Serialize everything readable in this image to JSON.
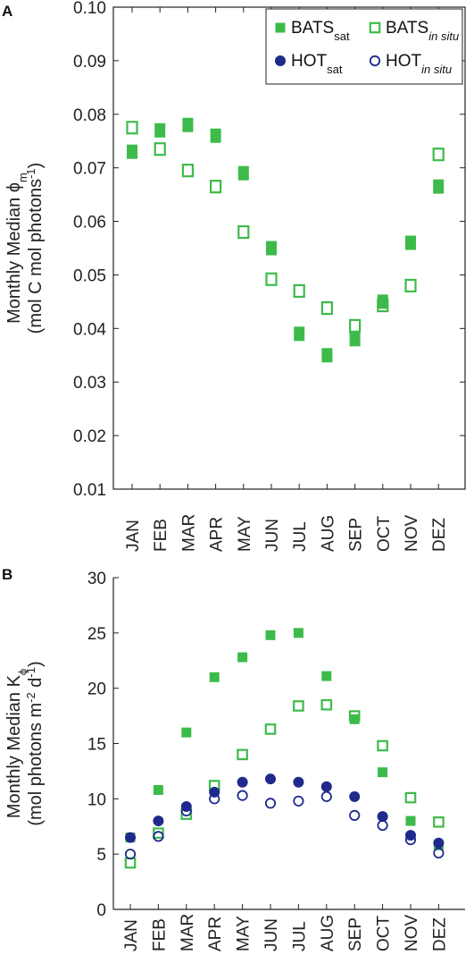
{
  "colors": {
    "bats": "#3dbb4a",
    "hot": "#1f2a8c",
    "axis": "#222222"
  },
  "chart_data": [
    {
      "panel": "A",
      "type": "scatter",
      "ylabel_line1": "Monthly Median ϕ",
      "ylabel_line1_sub": "m",
      "ylabel_line2_pre": "(mol C mol photons",
      "ylabel_line2_sup": "-1",
      "ylabel_line2_post": ")",
      "xlabel": "",
      "ylim": [
        0.01,
        0.1
      ],
      "yticks": [
        "0.10",
        "0.09",
        "0.08",
        "0.07",
        "0.06",
        "0.05",
        "0.04",
        "0.03",
        "0.02",
        "0.01"
      ],
      "ytick_values": [
        0.1,
        0.09,
        0.08,
        0.07,
        0.06,
        0.05,
        0.04,
        0.03,
        0.02,
        0.01
      ],
      "categories": [
        "JAN",
        "FEB",
        "MAR",
        "APR",
        "MAY",
        "JUN",
        "JUL",
        "AUG",
        "SEP",
        "OCT",
        "NOV",
        "DEZ"
      ],
      "legend": [
        {
          "base": "BATS",
          "sub": "sat",
          "sub_italic": false,
          "marker": "filled-square",
          "color": "bats"
        },
        {
          "base": "BATS",
          "sub": "in situ",
          "sub_italic": true,
          "marker": "open-square",
          "color": "bats"
        },
        {
          "base": "HOT",
          "sub": "sat",
          "sub_italic": false,
          "marker": "filled-circle",
          "color": "hot"
        },
        {
          "base": "HOT",
          "sub": "in situ",
          "sub_italic": true,
          "marker": "open-circle",
          "color": "hot"
        }
      ],
      "legend_position": "top-right",
      "series": [
        {
          "key": "bats_sat",
          "marker": "filled-rect",
          "color": "bats",
          "values": [
            0.073,
            0.077,
            0.078,
            0.076,
            0.069,
            0.055,
            0.039,
            0.035,
            0.038,
            0.045,
            0.056,
            0.0665
          ]
        },
        {
          "key": "bats_insitu",
          "marker": "open-rect",
          "color": "bats",
          "values": [
            0.0775,
            0.0735,
            0.0695,
            0.0665,
            0.058,
            0.0492,
            0.047,
            0.0438,
            0.0405,
            0.0443,
            0.048,
            0.0725
          ]
        }
      ]
    },
    {
      "panel": "B",
      "type": "scatter",
      "ylabel_line1": "Monthly Median K",
      "ylabel_line1_sub": "ϕ",
      "ylabel_line2_pre": "(mol photons m",
      "ylabel_line2_sup": "-2",
      "ylabel_line2_mid": " d",
      "ylabel_line2_sup2": "-1",
      "ylabel_line2_post": ")",
      "xlabel": "",
      "ylim": [
        0,
        30
      ],
      "yticks": [
        "30",
        "25",
        "20",
        "15",
        "10",
        "5",
        "0"
      ],
      "ytick_values": [
        30,
        25,
        20,
        15,
        10,
        5,
        0
      ],
      "categories": [
        "JAN",
        "FEB",
        "MAR",
        "APR",
        "MAY",
        "JUN",
        "JUL",
        "AUG",
        "SEP",
        "OCT",
        "NOV",
        "DEZ"
      ],
      "series": [
        {
          "key": "bats_sat",
          "marker": "filled-square",
          "color": "bats",
          "values": [
            6.5,
            10.8,
            16.0,
            21.0,
            22.8,
            24.8,
            25.0,
            21.1,
            17.2,
            12.4,
            8.0,
            5.8
          ]
        },
        {
          "key": "bats_insitu",
          "marker": "open-square",
          "color": "bats",
          "values": [
            4.2,
            6.9,
            8.6,
            11.2,
            14.0,
            16.3,
            18.4,
            18.5,
            17.5,
            14.8,
            10.1,
            7.9
          ]
        },
        {
          "key": "hot_sat",
          "marker": "filled-circle",
          "color": "hot",
          "values": [
            6.5,
            8.0,
            9.3,
            10.6,
            11.5,
            11.8,
            11.5,
            11.1,
            10.2,
            8.4,
            6.7,
            6.0
          ]
        },
        {
          "key": "hot_insitu",
          "marker": "open-circle",
          "color": "hot",
          "values": [
            5.0,
            6.6,
            8.9,
            10.0,
            10.3,
            9.6,
            9.8,
            10.2,
            8.5,
            7.6,
            6.3,
            5.1
          ]
        }
      ]
    }
  ]
}
